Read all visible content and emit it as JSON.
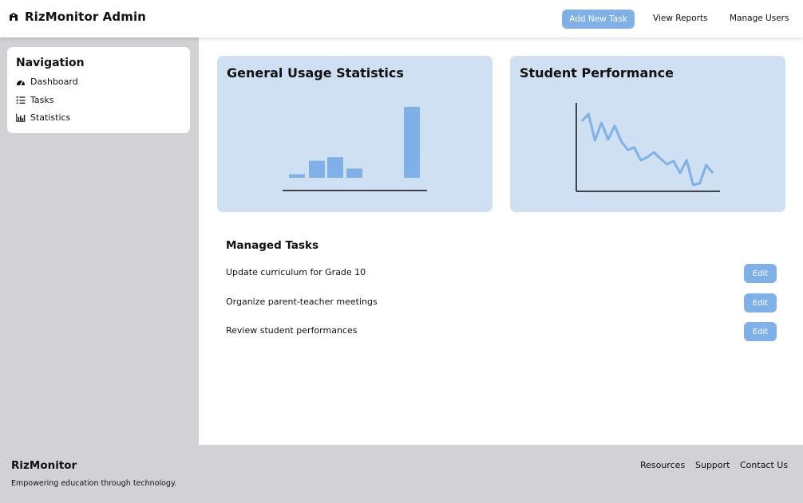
{
  "header": {
    "title": "RizMonitor Admin",
    "add_task_label": "Add New Task",
    "view_reports_label": "View Reports",
    "manage_users_label": "Manage Users"
  },
  "sidebar": {
    "title": "Navigation",
    "items": [
      {
        "label": "Dashboard",
        "icon": "dashboard-icon"
      },
      {
        "label": "Tasks",
        "icon": "tasks-icon"
      },
      {
        "label": "Statistics",
        "icon": "statistics-icon"
      }
    ]
  },
  "cards": {
    "usage_title": "General Usage Statistics",
    "performance_title": "Student Performance"
  },
  "chart_data": [
    {
      "type": "bar",
      "title": "General Usage Statistics",
      "values": [
        5,
        24,
        29,
        13,
        100
      ],
      "ylim": [
        0,
        100
      ],
      "grid": false,
      "color": "#7fb0e8"
    },
    {
      "type": "line",
      "title": "Student Performance",
      "values": [
        83,
        92,
        59,
        81,
        60,
        77,
        58,
        47,
        50,
        34,
        38,
        44,
        36,
        29,
        33,
        18,
        34,
        3,
        5,
        28,
        18
      ],
      "ylim": [
        0,
        100
      ],
      "grid": false,
      "color": "#7fb0e8"
    }
  ],
  "tasks": {
    "title": "Managed Tasks",
    "edit_label": "Edit",
    "items": [
      "Update curriculum for Grade 10",
      "Organize parent-teacher meetings",
      "Review student performances"
    ]
  },
  "footer": {
    "brand": "RizMonitor",
    "tagline": "Empowering education through technology.",
    "links": [
      "Resources",
      "Support",
      "Contact Us"
    ]
  },
  "colors": {
    "accent": "#7fb0e8",
    "card_bg": "#cfe0f2",
    "sidebar_bg": "#d2d2d6"
  }
}
